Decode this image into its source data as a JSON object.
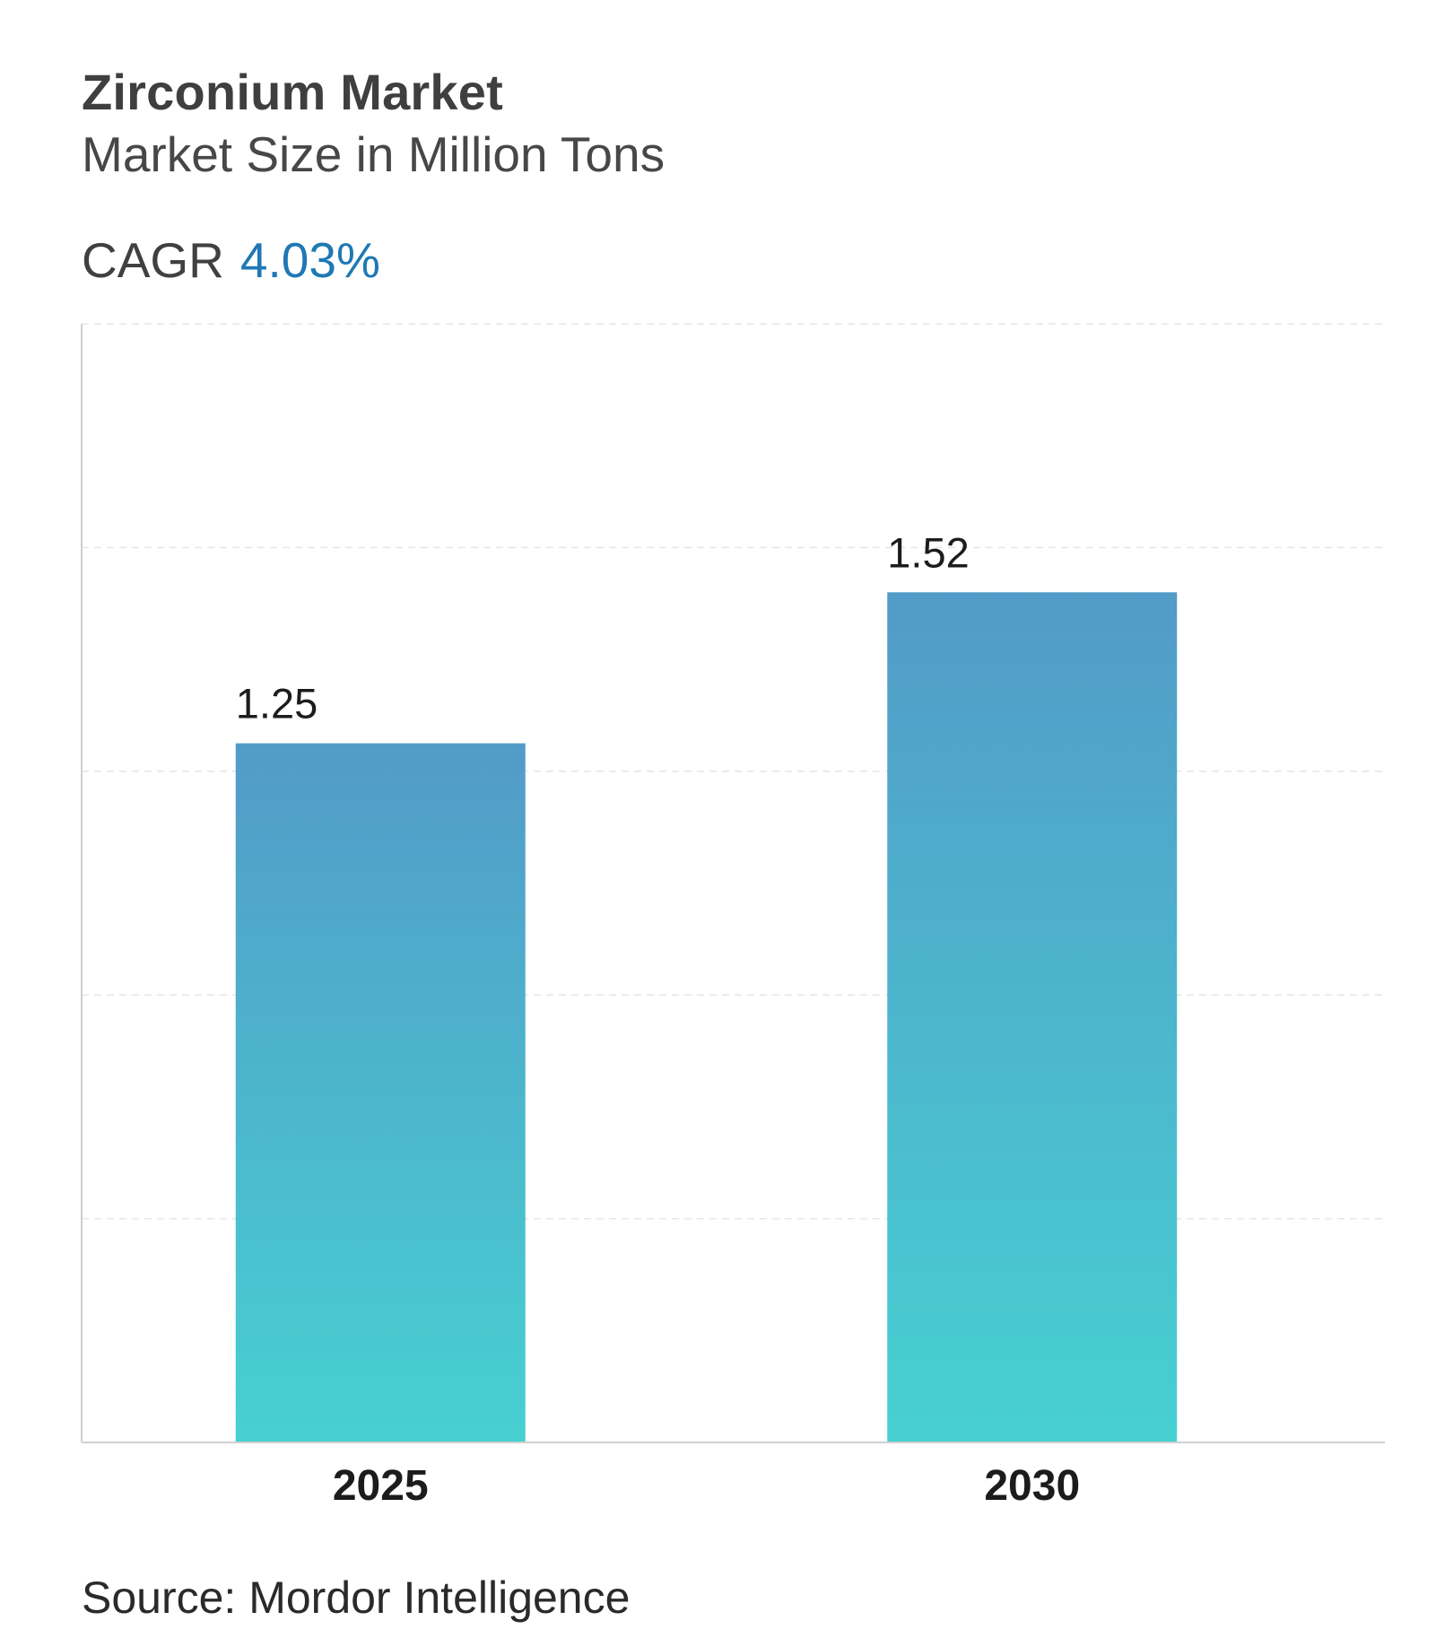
{
  "header": {
    "title": "Zirconium Market",
    "subtitle": "Market Size in Million Tons",
    "cagr_label": "CAGR",
    "cagr_value": "4.03%"
  },
  "footer": {
    "source": "Source: Mordor Intelligence"
  },
  "colors": {
    "bar_top": "#529bc8",
    "bar_bottom": "#47d0d2",
    "cagr_value": "#1f78b4",
    "grid": "#e6e6e6",
    "axis": "#d0d0d0"
  },
  "chart_data": {
    "type": "bar",
    "categories": [
      "2025",
      "2030"
    ],
    "values": [
      1.25,
      1.52
    ],
    "value_labels": [
      "1.25",
      "1.52"
    ],
    "title": "Zirconium Market",
    "subtitle": "Market Size in Million Tons",
    "ylim": [
      0,
      2.0
    ],
    "grid": true,
    "legend": "none"
  }
}
